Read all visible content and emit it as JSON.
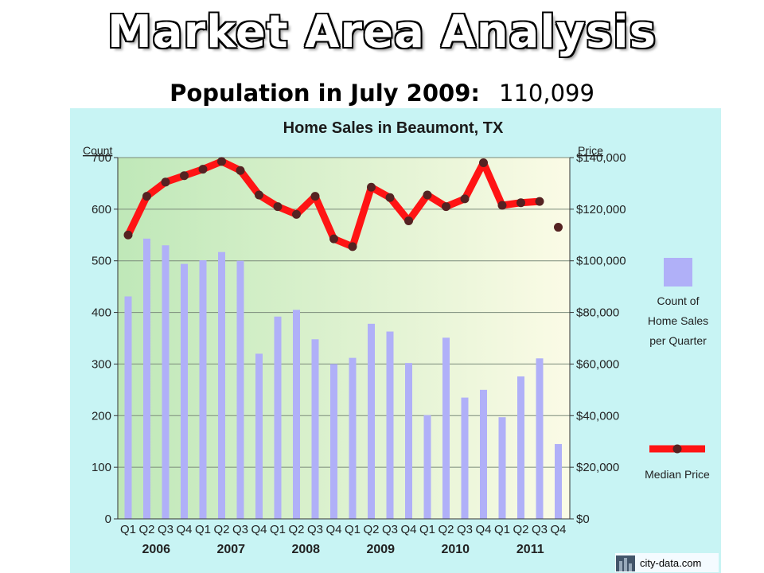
{
  "slide": {
    "title": "Market Area Analysis",
    "subtitle_label": "Population in July 2009:",
    "subtitle_value": "110,099"
  },
  "watermark": "city-data.com",
  "colors": {
    "panel_bg": "#c8f4f4",
    "plot_bg_left": "#bfe8b8",
    "plot_bg_right": "#fbfbe6",
    "bar": "#b0b0f8",
    "line": "#ff1414",
    "marker": "#552222"
  },
  "chart_data": {
    "type": "bar",
    "title": "Home Sales in Beaumont, TX",
    "ylabel": "Count",
    "y2label": "Price",
    "ylim": [
      0,
      700
    ],
    "y2lim": [
      0,
      140000
    ],
    "yticks": [
      "0",
      "100",
      "200",
      "300",
      "400",
      "500",
      "600",
      "700"
    ],
    "y2ticks": [
      "$0",
      "$20,000",
      "$40,000",
      "$60,000",
      "$80,000",
      "$100,000",
      "$120,000",
      "$140,000"
    ],
    "categories": [
      "Q1",
      "Q2",
      "Q3",
      "Q4",
      "Q1",
      "Q2",
      "Q3",
      "Q4",
      "Q1",
      "Q2",
      "Q3",
      "Q4",
      "Q1",
      "Q2",
      "Q3",
      "Q4",
      "Q1",
      "Q2",
      "Q3",
      "Q4",
      "Q1",
      "Q2",
      "Q3",
      "Q4"
    ],
    "years": [
      "2006",
      "2007",
      "2008",
      "2009",
      "2010",
      "2011"
    ],
    "grid": true,
    "legend_position": "right",
    "series": [
      {
        "name": "Count of Home Sales per Quarter",
        "legend_lines": [
          "Count of",
          "Home Sales",
          "per Quarter"
        ],
        "type": "bar",
        "axis": "left",
        "values": [
          431,
          543,
          530,
          494,
          501,
          517,
          500,
          320,
          392,
          405,
          348,
          300,
          312,
          378,
          363,
          302,
          201,
          351,
          235,
          250,
          197,
          276,
          311,
          145
        ]
      },
      {
        "name": "Median Price",
        "legend_lines": [
          "Median Price"
        ],
        "type": "line",
        "axis": "right",
        "values": [
          110000,
          125000,
          130500,
          133000,
          135500,
          138500,
          135000,
          125500,
          121000,
          118000,
          125000,
          108500,
          105500,
          128500,
          124500,
          115500,
          125500,
          121000,
          124000,
          138000,
          121500,
          122500,
          123000,
          113000
        ]
      }
    ]
  }
}
